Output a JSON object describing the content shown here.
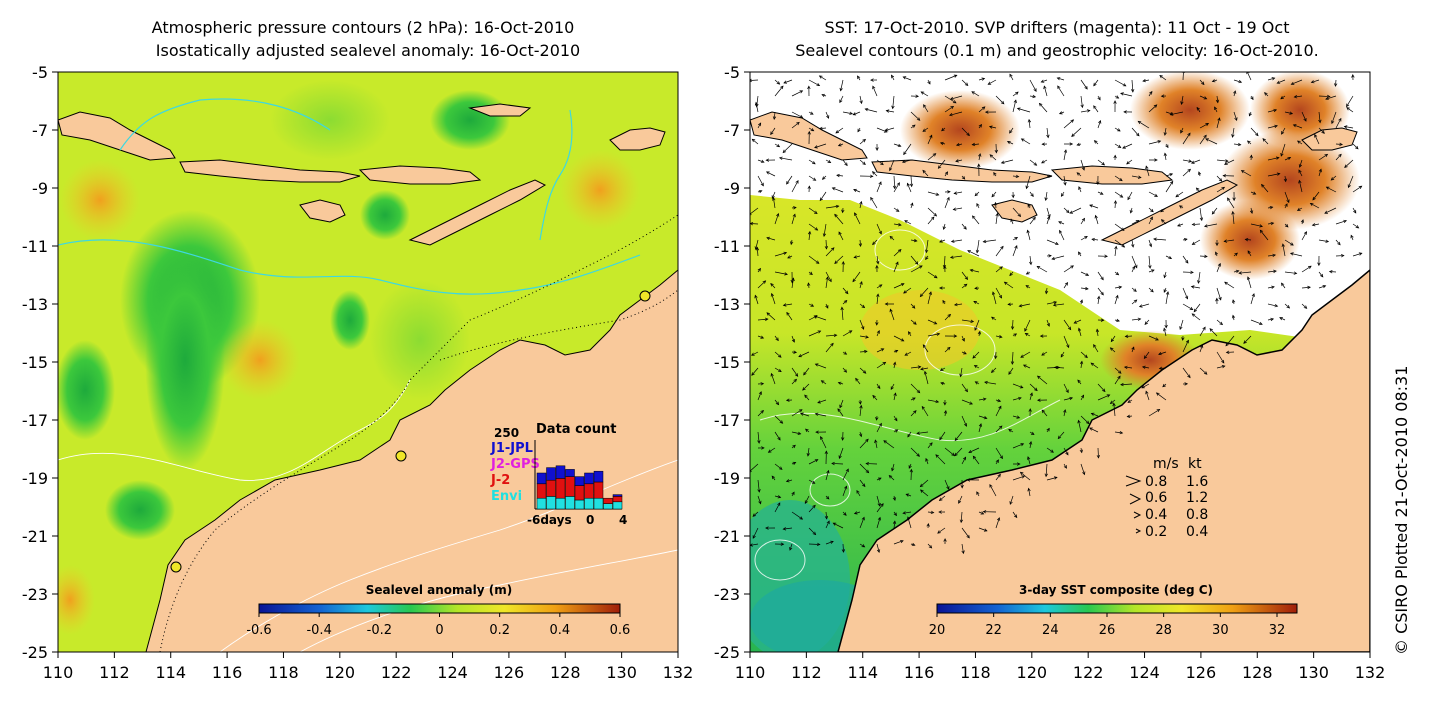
{
  "left_panel": {
    "title_line1": "Atmospheric pressure contours (2 hPa): 16-Oct-2010",
    "title_line2": "Isostatically adjusted sealevel anomaly: 16-Oct-2010",
    "colorbar_title": "Sealevel anomaly (m)",
    "colorbar_ticks": [
      "-0.6",
      "-0.4",
      "-0.2",
      "0",
      "0.2",
      "0.4",
      "0.6"
    ],
    "x_ticks": [
      "110",
      "112",
      "114",
      "116",
      "118",
      "120",
      "122",
      "124",
      "126",
      "128",
      "130",
      "132"
    ],
    "y_ticks": [
      "-5",
      "-7",
      "-9",
      "-11",
      "-13",
      "-15",
      "-17",
      "-19",
      "-21",
      "-23",
      "-25"
    ],
    "inset": {
      "title": "Data count",
      "ymax_label": "250",
      "legend": [
        {
          "label": "J1-JPL",
          "color": "#1010d0"
        },
        {
          "label": "J2-GPS",
          "color": "#e020e0"
        },
        {
          "label": "J-2",
          "color": "#e01010"
        },
        {
          "label": "Envi",
          "color": "#20e0e0"
        }
      ],
      "x_labels": [
        "-6days",
        "0",
        "4"
      ],
      "bars": [
        {
          "envi": 0.3,
          "j2": 0.4,
          "j1": 0.3
        },
        {
          "envi": 0.35,
          "j2": 0.45,
          "j1": 0.35
        },
        {
          "envi": 0.3,
          "j2": 0.55,
          "j1": 0.35
        },
        {
          "envi": 0.35,
          "j2": 0.55,
          "j1": 0.2
        },
        {
          "envi": 0.25,
          "j2": 0.4,
          "j1": 0.25
        },
        {
          "envi": 0.3,
          "j2": 0.4,
          "j1": 0.3
        },
        {
          "envi": 0.3,
          "j2": 0.45,
          "j1": 0.3
        },
        {
          "envi": 0.15,
          "j2": 0.15,
          "j1": 0.0
        },
        {
          "envi": 0.2,
          "j2": 0.15,
          "j1": 0.05
        }
      ]
    }
  },
  "right_panel": {
    "title_line1": "SST: 17-Oct-2010. SVP drifters (magenta): 11 Oct - 19 Oct",
    "title_line2": "Sealevel contours (0.1 m) and geostrophic velocity: 16-Oct-2010.",
    "colorbar_title": "3-day SST composite (deg C)",
    "colorbar_ticks": [
      "20",
      "22",
      "24",
      "26",
      "28",
      "30",
      "32"
    ],
    "x_ticks": [
      "110",
      "112",
      "114",
      "116",
      "118",
      "120",
      "122",
      "124",
      "126",
      "128",
      "130",
      "132"
    ],
    "y_ticks": [
      "-5",
      "-7",
      "-9",
      "-11",
      "-13",
      "-15",
      "-17",
      "-19",
      "-21",
      "-23",
      "-25"
    ],
    "speed_legend": {
      "header_ms": "m/s",
      "header_kt": "kt",
      "rows": [
        {
          "ms": "0.8",
          "kt": "1.6"
        },
        {
          "ms": "0.6",
          "kt": "1.2"
        },
        {
          "ms": "0.4",
          "kt": "0.8"
        },
        {
          "ms": "0.2",
          "kt": "0.4"
        }
      ]
    }
  },
  "credit": "© CSIRO Plotted 21-Oct-2010 08:31",
  "colors": {
    "land": "#f9c99b",
    "ocean_mid": "#c8ea2a",
    "ocean_green": "#32c832",
    "ocean_orange": "#f0b420",
    "cloud": "#ffffff",
    "contour_white": "#ffffff",
    "contour_cyan": "#3ed8e0"
  }
}
